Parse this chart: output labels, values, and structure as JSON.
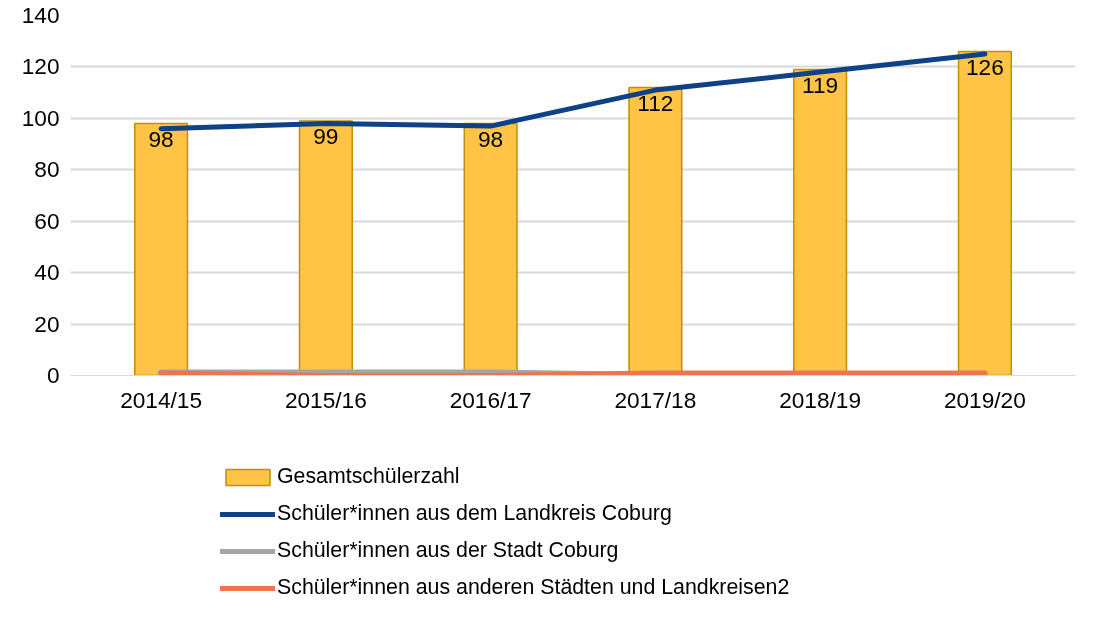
{
  "chart_data": {
    "type": "bar",
    "categories": [
      "2014/15",
      "2015/16",
      "2016/17",
      "2017/18",
      "2018/19",
      "2019/20"
    ],
    "series": [
      {
        "name": "Gesamtschülerzahl",
        "color": "#ffc445",
        "values": [
          98,
          99,
          98,
          112,
          119,
          126
        ],
        "value_labels": [
          "98",
          "99",
          "98",
          "112",
          "119",
          "126"
        ]
      },
      {
        "name": "Schüler*innen aus dem Landkreis Coburg",
        "type": "line",
        "color": "#0e4186",
        "values": [
          96,
          98,
          97,
          111,
          118,
          125
        ]
      },
      {
        "name": "Schüler*innen aus der Stadt Coburg",
        "type": "line",
        "color": "#a5a5a5",
        "values": [
          1,
          1,
          1,
          0,
          0,
          0
        ]
      },
      {
        "name": "Schüler*innen aus anderen Städten und Landkreisen2",
        "type": "line",
        "color": "#f07350",
        "values": [
          1,
          0,
          0,
          1,
          1,
          1
        ]
      }
    ],
    "ylim": [
      0,
      140
    ],
    "yticks": [
      0,
      20,
      40,
      60,
      80,
      100,
      120,
      140
    ],
    "grid": "y",
    "legend": "bottom"
  }
}
